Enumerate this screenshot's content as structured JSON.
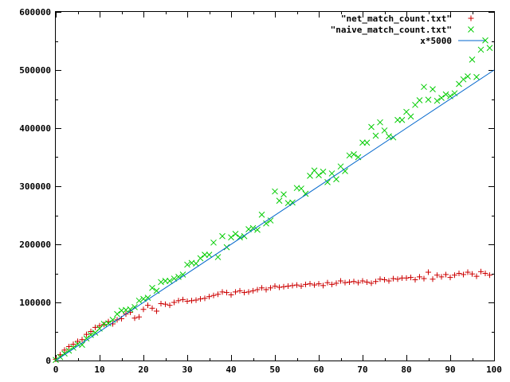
{
  "chart_data": {
    "type": "scatter",
    "xlim": [
      0,
      100
    ],
    "ylim": [
      0,
      600000
    ],
    "x_ticks": [
      0,
      10,
      20,
      30,
      40,
      50,
      60,
      70,
      80,
      90,
      100
    ],
    "y_ticks": [
      0,
      100000,
      200000,
      300000,
      400000,
      500000,
      600000
    ],
    "legend_position": "top-right",
    "grid": false,
    "series": [
      {
        "name": "\"net_match_count.txt\"",
        "marker": "plus",
        "color": "#cc0000",
        "x": [
          0,
          1,
          2,
          3,
          4,
          5,
          6,
          7,
          8,
          9,
          10,
          11,
          12,
          13,
          14,
          15,
          16,
          17,
          18,
          19,
          20,
          21,
          22,
          23,
          24,
          25,
          26,
          27,
          28,
          29,
          30,
          31,
          32,
          33,
          34,
          35,
          36,
          37,
          38,
          39,
          40,
          41,
          42,
          43,
          44,
          45,
          46,
          47,
          48,
          49,
          50,
          51,
          52,
          53,
          54,
          55,
          56,
          57,
          58,
          59,
          60,
          61,
          62,
          63,
          64,
          65,
          66,
          67,
          68,
          69,
          70,
          71,
          72,
          73,
          74,
          75,
          76,
          77,
          78,
          79,
          80,
          81,
          82,
          83,
          84,
          85,
          86,
          87,
          88,
          89,
          90,
          91,
          92,
          93,
          94,
          95,
          96,
          97,
          98,
          99
        ],
        "y": [
          2000,
          10000,
          18000,
          24000,
          28000,
          33000,
          36000,
          45000,
          50000,
          57000,
          60000,
          62000,
          67000,
          63000,
          70000,
          72000,
          80000,
          83000,
          73000,
          75000,
          88000,
          95000,
          90000,
          85000,
          98000,
          97000,
          95000,
          100000,
          103000,
          105000,
          102000,
          103000,
          104000,
          106000,
          107000,
          110000,
          112000,
          114000,
          118000,
          117000,
          113000,
          118000,
          120000,
          117000,
          118000,
          120000,
          122000,
          125000,
          122000,
          125000,
          128000,
          126000,
          127000,
          128000,
          129000,
          130000,
          128000,
          131000,
          132000,
          130000,
          132000,
          129000,
          134000,
          131000,
          133000,
          137000,
          134000,
          135000,
          136000,
          134000,
          137000,
          135000,
          133000,
          136000,
          140000,
          139000,
          137000,
          141000,
          140000,
          142000,
          142000,
          143000,
          139000,
          144000,
          141000,
          152000,
          140000,
          147000,
          144000,
          148000,
          143000,
          147000,
          150000,
          148000,
          152000,
          149000,
          145000,
          153000,
          150000,
          147000
        ]
      },
      {
        "name": "\"naive_match_count.txt\"",
        "marker": "cross",
        "color": "#00cc00",
        "x": [
          0,
          1,
          2,
          3,
          4,
          5,
          6,
          7,
          8,
          9,
          10,
          11,
          12,
          13,
          14,
          15,
          16,
          17,
          18,
          19,
          20,
          21,
          22,
          23,
          24,
          25,
          26,
          27,
          28,
          29,
          30,
          31,
          32,
          33,
          34,
          35,
          36,
          37,
          38,
          39,
          40,
          41,
          42,
          43,
          44,
          45,
          46,
          47,
          48,
          49,
          50,
          51,
          52,
          53,
          54,
          55,
          56,
          57,
          58,
          59,
          60,
          61,
          62,
          63,
          64,
          65,
          66,
          67,
          68,
          69,
          70,
          71,
          72,
          73,
          74,
          75,
          76,
          77,
          78,
          79,
          80,
          81,
          82,
          83,
          84,
          85,
          86,
          87,
          88,
          89,
          90,
          91,
          92,
          93,
          94,
          95,
          96,
          97,
          98,
          99
        ],
        "y": [
          1000,
          6000,
          12000,
          17000,
          22000,
          28000,
          27000,
          38000,
          44000,
          48000,
          55000,
          63000,
          64000,
          70000,
          80000,
          86000,
          87000,
          88000,
          92000,
          103000,
          106000,
          108000,
          125000,
          120000,
          135000,
          137000,
          137000,
          141000,
          144000,
          148000,
          165000,
          168000,
          167000,
          176000,
          182000,
          182000,
          203000,
          178000,
          214000,
          195000,
          212000,
          218000,
          212000,
          214000,
          226000,
          228000,
          225000,
          251000,
          236000,
          241000,
          291000,
          275000,
          286000,
          271000,
          272000,
          297000,
          296000,
          287000,
          318000,
          327000,
          319000,
          325000,
          307000,
          322000,
          312000,
          334000,
          326000,
          353000,
          355000,
          350000,
          375000,
          375000,
          402000,
          387000,
          410000,
          396000,
          386000,
          384000,
          414000,
          414000,
          428000,
          420000,
          440000,
          448000,
          471000,
          449000,
          467000,
          447000,
          452000,
          458000,
          455000,
          460000,
          476000,
          484000,
          489000,
          518000,
          488000,
          535000,
          551000,
          538000
        ]
      },
      {
        "name": "x*5000",
        "marker": "line",
        "color": "#0066cc",
        "x": [
          0,
          100
        ],
        "y": [
          0,
          500000
        ]
      }
    ]
  }
}
